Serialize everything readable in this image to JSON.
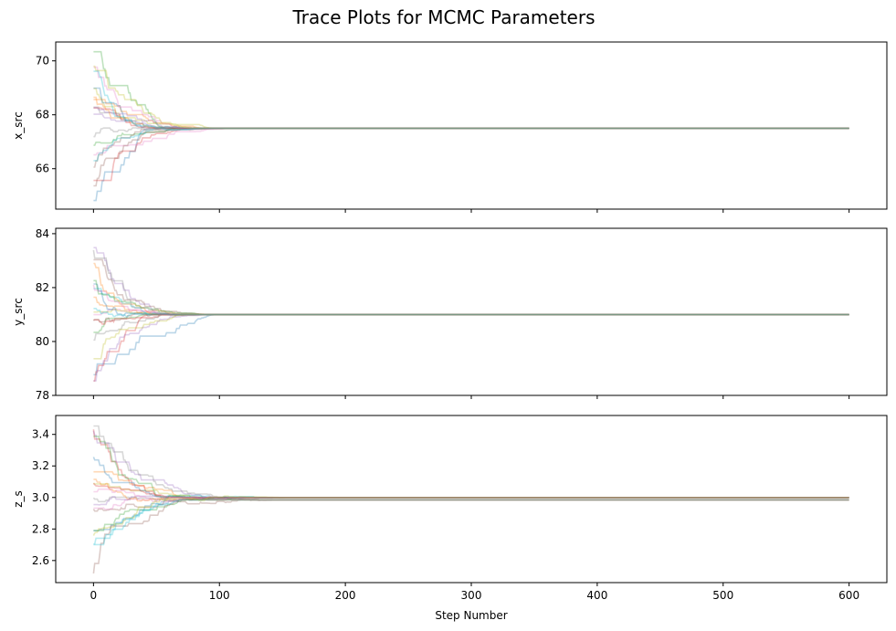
{
  "title": "Trace Plots for MCMC Parameters",
  "xlabel": "Step Number",
  "chart_data": {
    "type": "line",
    "title": "Trace Plots for MCMC Parameters",
    "xlabel": "Step Number",
    "xlim": [
      -30,
      630
    ],
    "xticks": [
      0,
      100,
      200,
      300,
      400,
      500,
      600
    ],
    "n_steps": 600,
    "n_walkers": 20,
    "walker_colors": [
      "#1f77b4",
      "#ff7f0e",
      "#2ca02c",
      "#d62728",
      "#9467bd",
      "#8c564b",
      "#e377c2",
      "#7f7f7f",
      "#bcbd22",
      "#17becf"
    ],
    "line_alpha": 0.3,
    "panels": [
      {
        "ylabel": "x_src",
        "ylim": [
          64.5,
          70.7
        ],
        "yticks": [
          66,
          68,
          70
        ],
        "converged_value": 67.5,
        "initial_spread": [
          64.7,
          70.5
        ],
        "burn_in_steps": 80
      },
      {
        "ylabel": "y_src",
        "ylim": [
          78,
          84.2
        ],
        "yticks": [
          78,
          80,
          82,
          84
        ],
        "converged_value": 81.0,
        "initial_spread": [
          78.2,
          84.0
        ],
        "burn_in_steps": 70
      },
      {
        "ylabel": "z_s",
        "ylim": [
          2.46,
          3.52
        ],
        "yticks": [
          2.6,
          2.8,
          3.0,
          3.2,
          3.4
        ],
        "converged_value": 3.0,
        "secondary_value": 2.985,
        "initial_spread": [
          2.5,
          3.5
        ],
        "burn_in_steps": 120
      }
    ]
  }
}
